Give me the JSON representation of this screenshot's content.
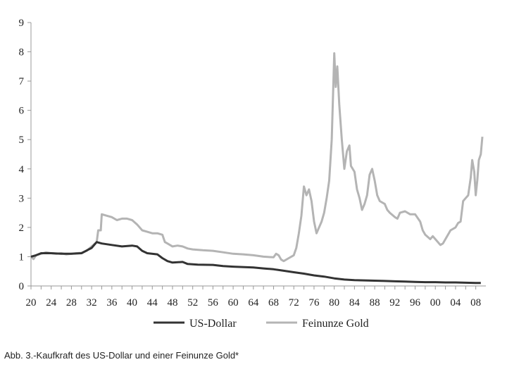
{
  "caption": "Abb. 3.-Kaufkraft des US-Dollar und einer Feinunze Gold*",
  "chart_data": {
    "type": "line",
    "title": "",
    "xlabel": "",
    "ylabel": "",
    "xlim": [
      1920,
      2010
    ],
    "ylim": [
      0,
      9
    ],
    "y_ticks": [
      "0",
      "1",
      "2",
      "3",
      "4",
      "5",
      "6",
      "7",
      "8",
      "9"
    ],
    "x_ticks": [
      {
        "year": 1920,
        "label": "20"
      },
      {
        "year": 1924,
        "label": "24"
      },
      {
        "year": 1928,
        "label": "28"
      },
      {
        "year": 1932,
        "label": "32"
      },
      {
        "year": 1936,
        "label": "36"
      },
      {
        "year": 1940,
        "label": "40"
      },
      {
        "year": 1944,
        "label": "44"
      },
      {
        "year": 1948,
        "label": "48"
      },
      {
        "year": 1952,
        "label": "52"
      },
      {
        "year": 1956,
        "label": "56"
      },
      {
        "year": 1960,
        "label": "60"
      },
      {
        "year": 1964,
        "label": "64"
      },
      {
        "year": 1968,
        "label": "68"
      },
      {
        "year": 1972,
        "label": "72"
      },
      {
        "year": 1976,
        "label": "76"
      },
      {
        "year": 1980,
        "label": "80"
      },
      {
        "year": 1984,
        "label": "84"
      },
      {
        "year": 1988,
        "label": "88"
      },
      {
        "year": 1992,
        "label": "92"
      },
      {
        "year": 1996,
        "label": "96"
      },
      {
        "year": 2000,
        "label": "00"
      },
      {
        "year": 2004,
        "label": "04"
      },
      {
        "year": 2008,
        "label": "08"
      }
    ],
    "grid": false,
    "legend_position": "bottom",
    "series": [
      {
        "name": "US-Dollar",
        "color": "#333333",
        "points": [
          [
            1920,
            1.0
          ],
          [
            1921,
            1.05
          ],
          [
            1922,
            1.12
          ],
          [
            1924,
            1.12
          ],
          [
            1926,
            1.1
          ],
          [
            1928,
            1.1
          ],
          [
            1930,
            1.12
          ],
          [
            1932,
            1.3
          ],
          [
            1933,
            1.5
          ],
          [
            1934,
            1.45
          ],
          [
            1936,
            1.4
          ],
          [
            1938,
            1.35
          ],
          [
            1940,
            1.38
          ],
          [
            1941,
            1.35
          ],
          [
            1942,
            1.2
          ],
          [
            1943,
            1.12
          ],
          [
            1945,
            1.08
          ],
          [
            1946,
            0.95
          ],
          [
            1947,
            0.85
          ],
          [
            1948,
            0.8
          ],
          [
            1950,
            0.82
          ],
          [
            1951,
            0.75
          ],
          [
            1953,
            0.73
          ],
          [
            1956,
            0.72
          ],
          [
            1958,
            0.68
          ],
          [
            1960,
            0.66
          ],
          [
            1964,
            0.63
          ],
          [
            1966,
            0.6
          ],
          [
            1968,
            0.57
          ],
          [
            1970,
            0.52
          ],
          [
            1972,
            0.47
          ],
          [
            1974,
            0.42
          ],
          [
            1976,
            0.36
          ],
          [
            1978,
            0.32
          ],
          [
            1980,
            0.26
          ],
          [
            1982,
            0.22
          ],
          [
            1984,
            0.2
          ],
          [
            1986,
            0.19
          ],
          [
            1988,
            0.18
          ],
          [
            1990,
            0.17
          ],
          [
            1992,
            0.16
          ],
          [
            1994,
            0.15
          ],
          [
            1996,
            0.14
          ],
          [
            1998,
            0.13
          ],
          [
            2000,
            0.13
          ],
          [
            2002,
            0.12
          ],
          [
            2004,
            0.12
          ],
          [
            2006,
            0.11
          ],
          [
            2008,
            0.1
          ],
          [
            2009,
            0.1
          ]
        ]
      },
      {
        "name": "Feinunze Gold",
        "color": "#b4b4b4",
        "points": [
          [
            1920,
            1.0
          ],
          [
            1920.5,
            0.92
          ],
          [
            1921,
            1.05
          ],
          [
            1922,
            1.1
          ],
          [
            1923,
            1.15
          ],
          [
            1924,
            1.12
          ],
          [
            1925,
            1.1
          ],
          [
            1926,
            1.12
          ],
          [
            1927,
            1.08
          ],
          [
            1928,
            1.1
          ],
          [
            1929,
            1.12
          ],
          [
            1930,
            1.13
          ],
          [
            1931,
            1.2
          ],
          [
            1932,
            1.35
          ],
          [
            1933,
            1.5
          ],
          [
            1933.3,
            1.9
          ],
          [
            1933.8,
            1.9
          ],
          [
            1934,
            2.45
          ],
          [
            1935,
            2.4
          ],
          [
            1936,
            2.35
          ],
          [
            1937,
            2.25
          ],
          [
            1938,
            2.3
          ],
          [
            1939,
            2.3
          ],
          [
            1940,
            2.25
          ],
          [
            1941,
            2.1
          ],
          [
            1942,
            1.9
          ],
          [
            1943,
            1.85
          ],
          [
            1944,
            1.8
          ],
          [
            1945,
            1.8
          ],
          [
            1946,
            1.75
          ],
          [
            1946.5,
            1.5
          ],
          [
            1947,
            1.45
          ],
          [
            1948,
            1.35
          ],
          [
            1949,
            1.38
          ],
          [
            1950,
            1.35
          ],
          [
            1951,
            1.28
          ],
          [
            1952,
            1.25
          ],
          [
            1954,
            1.22
          ],
          [
            1956,
            1.2
          ],
          [
            1958,
            1.15
          ],
          [
            1960,
            1.1
          ],
          [
            1962,
            1.08
          ],
          [
            1964,
            1.05
          ],
          [
            1966,
            1.0
          ],
          [
            1968,
            0.98
          ],
          [
            1968.5,
            1.1
          ],
          [
            1969,
            1.05
          ],
          [
            1969.5,
            0.9
          ],
          [
            1970,
            0.85
          ],
          [
            1971,
            0.95
          ],
          [
            1972,
            1.05
          ],
          [
            1972.5,
            1.3
          ],
          [
            1973,
            1.8
          ],
          [
            1973.5,
            2.4
          ],
          [
            1974,
            3.4
          ],
          [
            1974.5,
            3.1
          ],
          [
            1975,
            3.3
          ],
          [
            1975.5,
            2.9
          ],
          [
            1976,
            2.2
          ],
          [
            1976.5,
            1.8
          ],
          [
            1977,
            2.0
          ],
          [
            1977.5,
            2.2
          ],
          [
            1978,
            2.5
          ],
          [
            1978.5,
            3.0
          ],
          [
            1979,
            3.6
          ],
          [
            1979.5,
            5.0
          ],
          [
            1980,
            7.95
          ],
          [
            1980.3,
            6.8
          ],
          [
            1980.6,
            7.5
          ],
          [
            1981,
            6.2
          ],
          [
            1981.5,
            5.0
          ],
          [
            1982,
            4.0
          ],
          [
            1982.5,
            4.6
          ],
          [
            1983,
            4.8
          ],
          [
            1983.3,
            4.1
          ],
          [
            1984,
            3.9
          ],
          [
            1984.5,
            3.3
          ],
          [
            1985,
            3.0
          ],
          [
            1985.5,
            2.6
          ],
          [
            1986,
            2.8
          ],
          [
            1986.5,
            3.1
          ],
          [
            1987,
            3.8
          ],
          [
            1987.5,
            4.0
          ],
          [
            1988,
            3.6
          ],
          [
            1988.5,
            3.1
          ],
          [
            1989,
            2.9
          ],
          [
            1990,
            2.8
          ],
          [
            1990.5,
            2.6
          ],
          [
            1991,
            2.5
          ],
          [
            1992,
            2.35
          ],
          [
            1992.5,
            2.3
          ],
          [
            1993,
            2.5
          ],
          [
            1994,
            2.55
          ],
          [
            1995,
            2.45
          ],
          [
            1996,
            2.45
          ],
          [
            1997,
            2.2
          ],
          [
            1997.5,
            1.9
          ],
          [
            1998,
            1.75
          ],
          [
            1999,
            1.6
          ],
          [
            1999.5,
            1.7
          ],
          [
            2000,
            1.6
          ],
          [
            2001,
            1.4
          ],
          [
            2001.5,
            1.45
          ],
          [
            2002,
            1.6
          ],
          [
            2003,
            1.9
          ],
          [
            2004,
            2.0
          ],
          [
            2004.5,
            2.15
          ],
          [
            2005,
            2.2
          ],
          [
            2005.5,
            2.9
          ],
          [
            2006,
            3.0
          ],
          [
            2006.5,
            3.1
          ],
          [
            2007,
            3.7
          ],
          [
            2007.3,
            4.3
          ],
          [
            2007.7,
            3.9
          ],
          [
            2008,
            3.1
          ],
          [
            2008.3,
            3.6
          ],
          [
            2008.6,
            4.3
          ],
          [
            2009,
            4.5
          ],
          [
            2009.3,
            5.1
          ]
        ]
      }
    ]
  }
}
